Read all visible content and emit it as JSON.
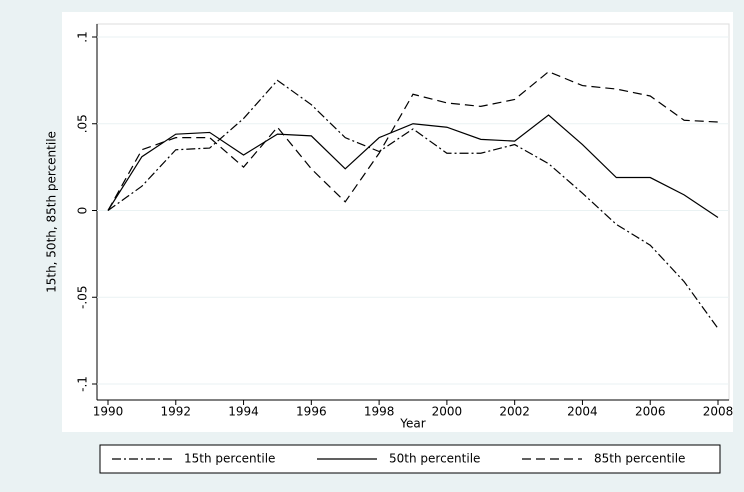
{
  "chart_data": {
    "type": "line",
    "xlabel": "Year",
    "ylabel": "15th, 50th, 85th percentile",
    "x": [
      1990,
      1991,
      1992,
      1993,
      1994,
      1995,
      1996,
      1997,
      1998,
      1999,
      2000,
      2001,
      2002,
      2003,
      2004,
      2005,
      2006,
      2007,
      2008
    ],
    "series": [
      {
        "name": "15th percentile",
        "color": "#000000",
        "dash": "dashdot",
        "values": [
          0,
          0.014,
          0.035,
          0.036,
          0.053,
          0.075,
          0.061,
          0.042,
          0.034,
          0.047,
          0.033,
          0.033,
          0.038,
          0.027,
          0.01,
          -0.008,
          -0.02,
          -0.041,
          -0.068
        ]
      },
      {
        "name": "50th percentile",
        "color": "#000000",
        "dash": "solid",
        "values": [
          0,
          0.031,
          0.044,
          0.045,
          0.032,
          0.044,
          0.043,
          0.024,
          0.042,
          0.05,
          0.048,
          0.041,
          0.04,
          0.055,
          0.038,
          0.019,
          0.019,
          0.009,
          -0.004
        ]
      },
      {
        "name": "85th percentile",
        "color": "#000000",
        "dash": "dash",
        "values": [
          0,
          0.035,
          0.042,
          0.042,
          0.025,
          0.048,
          0.024,
          0.005,
          0.033,
          0.067,
          0.062,
          0.06,
          0.064,
          0.08,
          0.072,
          0.07,
          0.066,
          0.052,
          0.051
        ]
      }
    ],
    "xlim": [
      1990,
      2008
    ],
    "xticks": [
      1990,
      1992,
      1994,
      1996,
      1998,
      2000,
      2002,
      2004,
      2006,
      2008
    ],
    "ylim": [
      -0.1,
      0.1
    ],
    "yticks": [
      {
        "value": -0.1,
        "label": "-.1"
      },
      {
        "value": -0.05,
        "label": "-.05"
      },
      0,
      {
        "value": 0.05,
        "label": ".05"
      },
      {
        "value": 0.1,
        "label": ".1"
      }
    ],
    "grid": true,
    "legend": "bottom"
  }
}
